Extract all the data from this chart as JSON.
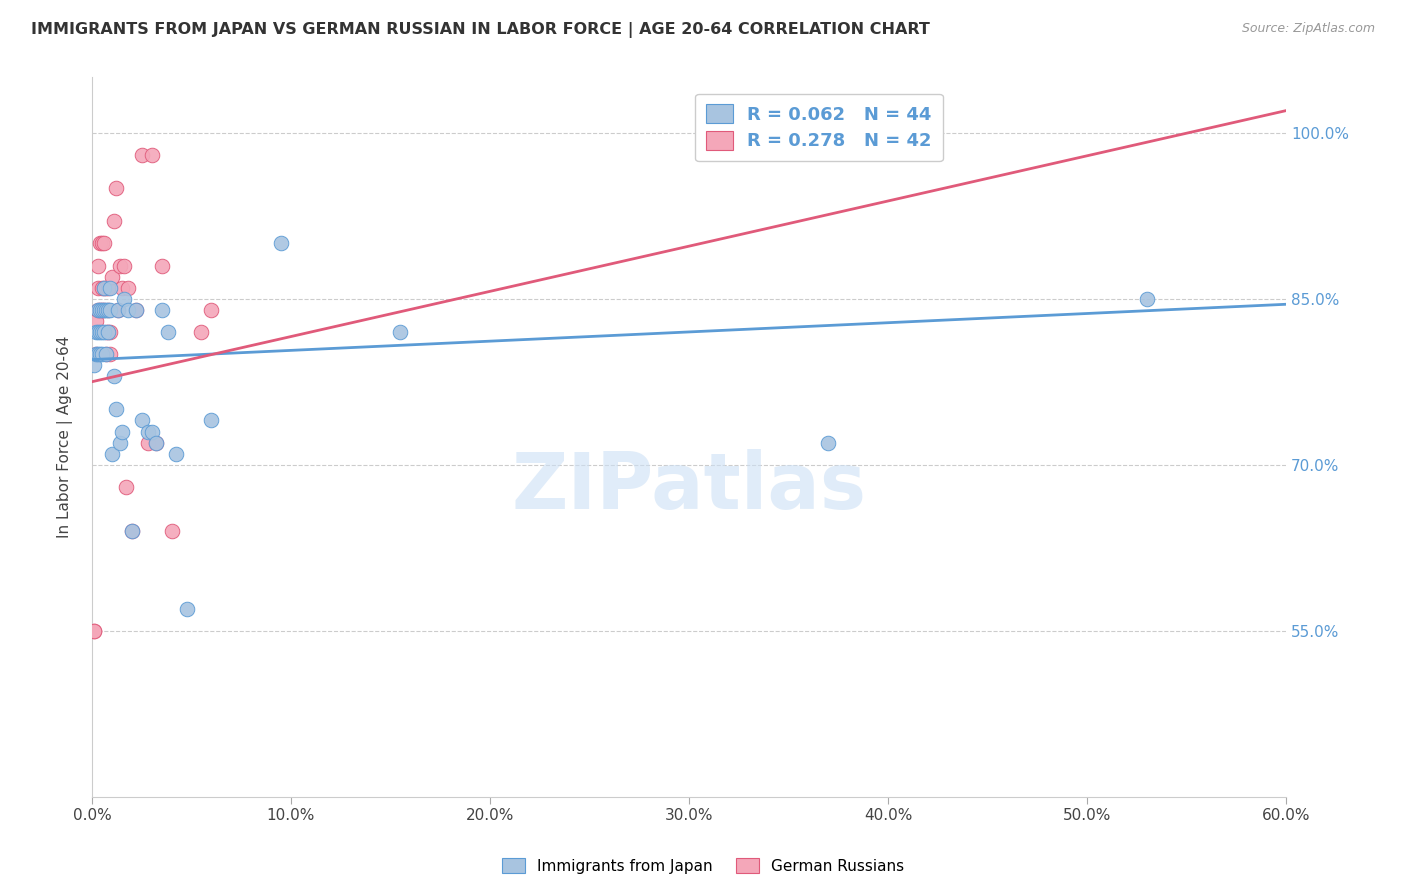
{
  "title": "IMMIGRANTS FROM JAPAN VS GERMAN RUSSIAN IN LABOR FORCE | AGE 20-64 CORRELATION CHART",
  "source": "Source: ZipAtlas.com",
  "xlabel": "",
  "ylabel": "In Labor Force | Age 20-64",
  "xlim": [
    0.0,
    0.6
  ],
  "ylim": [
    0.4,
    1.05
  ],
  "xticks": [
    0.0,
    0.1,
    0.2,
    0.3,
    0.4,
    0.5,
    0.6
  ],
  "xticklabels": [
    "0.0%",
    "10.0%",
    "20.0%",
    "30.0%",
    "40.0%",
    "50.0%",
    "60.0%"
  ],
  "yticks": [
    0.55,
    0.7,
    0.85,
    1.0
  ],
  "yticklabels": [
    "55.0%",
    "70.0%",
    "85.0%",
    "100.0%"
  ],
  "blue_color": "#a8c4e0",
  "pink_color": "#f4a7b9",
  "blue_line_color": "#5b9bd5",
  "pink_line_color": "#e05a7a",
  "legend_R_color": "#5b9bd5",
  "watermark_color": "#cce0f5",
  "blue_R": 0.062,
  "blue_N": 44,
  "pink_R": 0.278,
  "pink_N": 42,
  "blue_scatter_x": [
    0.001,
    0.002,
    0.002,
    0.003,
    0.003,
    0.003,
    0.004,
    0.004,
    0.004,
    0.005,
    0.005,
    0.005,
    0.006,
    0.006,
    0.006,
    0.007,
    0.007,
    0.008,
    0.008,
    0.009,
    0.009,
    0.01,
    0.011,
    0.012,
    0.013,
    0.014,
    0.015,
    0.016,
    0.018,
    0.02,
    0.022,
    0.025,
    0.028,
    0.03,
    0.032,
    0.035,
    0.038,
    0.042,
    0.048,
    0.06,
    0.095,
    0.155,
    0.37,
    0.53
  ],
  "blue_scatter_y": [
    0.79,
    0.8,
    0.82,
    0.8,
    0.82,
    0.84,
    0.8,
    0.82,
    0.84,
    0.8,
    0.82,
    0.84,
    0.82,
    0.84,
    0.86,
    0.8,
    0.84,
    0.82,
    0.84,
    0.84,
    0.86,
    0.71,
    0.78,
    0.75,
    0.84,
    0.72,
    0.73,
    0.85,
    0.84,
    0.64,
    0.84,
    0.74,
    0.73,
    0.73,
    0.72,
    0.84,
    0.82,
    0.71,
    0.57,
    0.74,
    0.9,
    0.82,
    0.72,
    0.85
  ],
  "pink_scatter_x": [
    0.001,
    0.001,
    0.002,
    0.002,
    0.003,
    0.003,
    0.003,
    0.004,
    0.004,
    0.005,
    0.005,
    0.005,
    0.006,
    0.006,
    0.006,
    0.007,
    0.007,
    0.007,
    0.008,
    0.008,
    0.008,
    0.009,
    0.009,
    0.01,
    0.011,
    0.012,
    0.013,
    0.014,
    0.015,
    0.016,
    0.017,
    0.018,
    0.02,
    0.022,
    0.025,
    0.028,
    0.03,
    0.032,
    0.035,
    0.04,
    0.055,
    0.06
  ],
  "pink_scatter_y": [
    0.55,
    0.55,
    0.8,
    0.83,
    0.84,
    0.86,
    0.88,
    0.84,
    0.9,
    0.84,
    0.86,
    0.9,
    0.84,
    0.86,
    0.9,
    0.8,
    0.82,
    0.86,
    0.82,
    0.84,
    0.86,
    0.8,
    0.82,
    0.87,
    0.92,
    0.95,
    0.84,
    0.88,
    0.86,
    0.88,
    0.68,
    0.86,
    0.64,
    0.84,
    0.98,
    0.72,
    0.98,
    0.72,
    0.88,
    0.64,
    0.82,
    0.84
  ],
  "blue_trend_x": [
    0.0,
    0.6
  ],
  "blue_trend_y": [
    0.795,
    0.845
  ],
  "pink_trend_x": [
    0.0,
    0.6
  ],
  "pink_trend_y": [
    0.775,
    1.02
  ]
}
